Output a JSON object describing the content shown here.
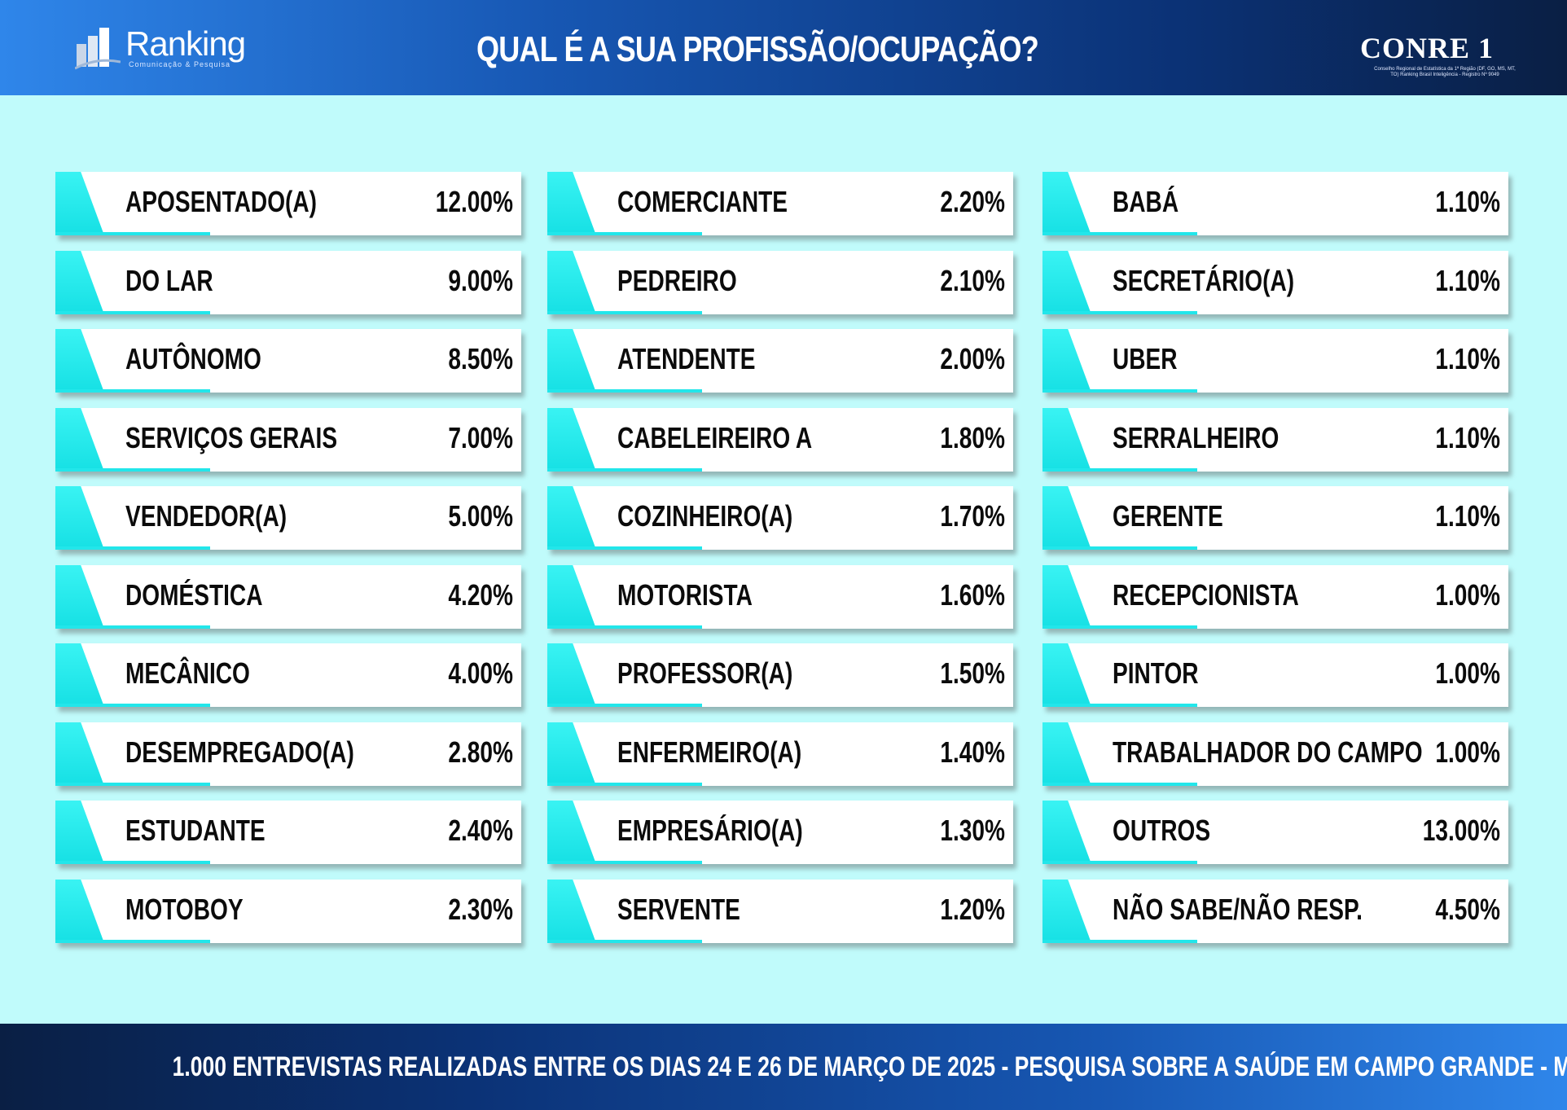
{
  "header": {
    "title": "QUAL É A SUA PROFISSÃO/OCUPAÇÃO?",
    "logo_left": {
      "name": "Ranking",
      "subtitle": "Comunicação & Pesquisa"
    },
    "logo_right": {
      "name": "CONRE 1",
      "subtitle": "Conselho Regional de Estatística da 1ª Região (DF, GO, MS, MT, TO) Ranking Brasil Inteligência - Registro Nº 9049"
    }
  },
  "chart_data": {
    "type": "table",
    "title": "QUAL É A SUA PROFISSÃO/OCUPAÇÃO?",
    "rows": [
      {
        "label": "APOSENTADO(A)",
        "value": "12.00%"
      },
      {
        "label": "DO LAR",
        "value": "9.00%"
      },
      {
        "label": "AUTÔNOMO",
        "value": "8.50%"
      },
      {
        "label": "SERVIÇOS GERAIS",
        "value": "7.00%"
      },
      {
        "label": "VENDEDOR(A)",
        "value": "5.00%"
      },
      {
        "label": "DOMÉSTICA",
        "value": "4.20%"
      },
      {
        "label": "MECÂNICO",
        "value": "4.00%"
      },
      {
        "label": "DESEMPREGADO(A)",
        "value": "2.80%"
      },
      {
        "label": "ESTUDANTE",
        "value": "2.40%"
      },
      {
        "label": "MOTOBOY",
        "value": "2.30%"
      },
      {
        "label": "COMERCIANTE",
        "value": "2.20%"
      },
      {
        "label": "PEDREIRO",
        "value": "2.10%"
      },
      {
        "label": "ATENDENTE",
        "value": "2.00%"
      },
      {
        "label": "CABELEIREIRO A",
        "value": "1.80%"
      },
      {
        "label": "COZINHEIRO(A)",
        "value": "1.70%"
      },
      {
        "label": "MOTORISTA",
        "value": "1.60%"
      },
      {
        "label": "PROFESSOR(A)",
        "value": "1.50%"
      },
      {
        "label": "ENFERMEIRO(A)",
        "value": "1.40%"
      },
      {
        "label": "EMPRESÁRIO(A)",
        "value": "1.30%"
      },
      {
        "label": "SERVENTE",
        "value": "1.20%"
      },
      {
        "label": "BABÁ",
        "value": "1.10%"
      },
      {
        "label": "SECRETÁRIO(A)",
        "value": "1.10%"
      },
      {
        "label": "UBER",
        "value": "1.10%"
      },
      {
        "label": "SERRALHEIRO",
        "value": "1.10%"
      },
      {
        "label": "GERENTE",
        "value": "1.10%"
      },
      {
        "label": "RECEPCIONISTA",
        "value": "1.00%"
      },
      {
        "label": "PINTOR",
        "value": "1.00%"
      },
      {
        "label": "TRABALHADOR DO CAMPO",
        "value": "1.00%"
      },
      {
        "label": "OUTROS",
        "value": "13.00%"
      },
      {
        "label": "NÃO SABE/NÃO RESP.",
        "value": "4.50%"
      }
    ]
  },
  "footer": {
    "text": "1.000 ENTREVISTAS REALIZADAS ENTRE OS DIAS 24 E 26 DE MARÇO DE 2025  - PESQUISA SOBRE A SAÚDE EM CAMPO GRANDE - MS"
  },
  "colors": {
    "background": "#c0fbfb",
    "accent": "#22e6ea",
    "header_dark": "#0a1f44",
    "header_light": "#2f86ea"
  }
}
